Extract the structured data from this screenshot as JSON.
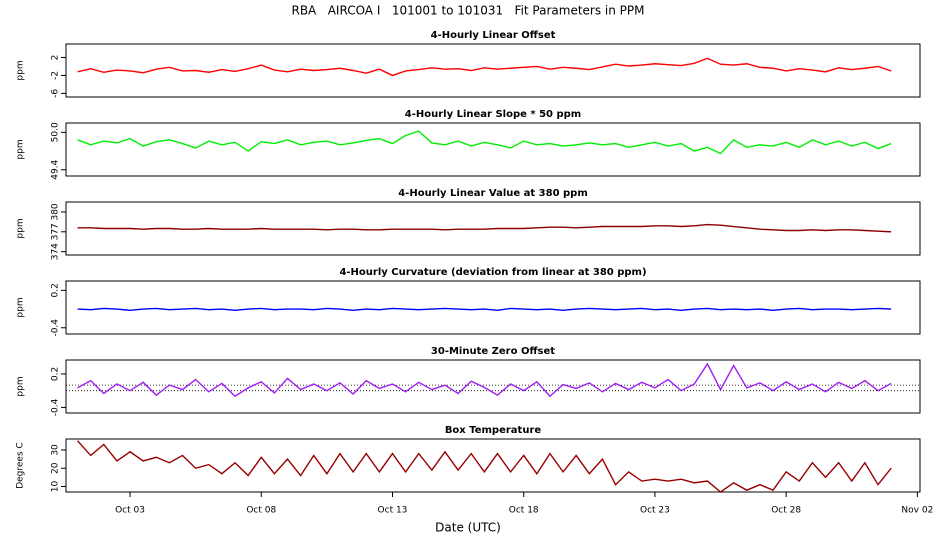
{
  "title": "RBA   AIRCOA I   101001 to 101031   Fit Parameters in PPM",
  "x_label": "Date (UTC)",
  "chart_data": [
    {
      "type": "line",
      "title": "4-Hourly Linear Offset",
      "y_label": "ppm",
      "color": "#ff0000",
      "xlim": [
        0.56,
        33.1
      ],
      "ylim": [
        -6.8,
        5
      ],
      "yticks": [
        -6,
        -2,
        2
      ],
      "x": [
        1,
        1.5,
        2,
        2.5,
        3,
        3.5,
        4,
        4.5,
        5,
        5.5,
        6,
        6.5,
        7,
        7.5,
        8,
        8.5,
        9,
        9.5,
        10,
        10.5,
        11,
        11.5,
        12,
        12.5,
        13,
        13.5,
        14,
        14.5,
        15,
        15.5,
        16,
        16.5,
        17,
        17.5,
        18,
        18.5,
        19,
        19.5,
        20,
        20.5,
        21,
        21.5,
        22,
        22.5,
        23,
        23.5,
        24,
        24.5,
        25,
        25.5,
        26,
        26.5,
        27,
        27.5,
        28,
        28.5,
        29,
        29.5,
        30,
        30.5,
        31,
        31.5,
        32
      ],
      "values": [
        -1.2,
        -0.5,
        -1.3,
        -0.8,
        -1.0,
        -1.4,
        -0.6,
        -0.2,
        -1.0,
        -0.9,
        -1.3,
        -0.7,
        -1.1,
        -0.5,
        0.3,
        -0.8,
        -1.2,
        -0.6,
        -0.9,
        -0.7,
        -0.4,
        -0.9,
        -1.5,
        -0.6,
        -2.0,
        -1.0,
        -0.7,
        -0.3,
        -0.6,
        -0.5,
        -0.9,
        -0.3,
        -0.6,
        -0.4,
        -0.2,
        0.0,
        -0.6,
        -0.2,
        -0.4,
        -0.7,
        -0.1,
        0.5,
        0.1,
        0.3,
        0.6,
        0.4,
        0.2,
        0.7,
        1.8,
        0.5,
        0.3,
        0.6,
        -0.2,
        -0.4,
        -1.0,
        -0.5,
        -0.8,
        -1.2,
        -0.3,
        -0.7,
        -0.4,
        0.0,
        -1.0
      ]
    },
    {
      "type": "line",
      "title": "4-Hourly Linear Slope * 50 ppm",
      "y_label": "ppm",
      "color": "#00ee00",
      "xlim": [
        0.56,
        33.1
      ],
      "ylim": [
        49.3,
        50.15
      ],
      "yticks": [
        49.4,
        {
          "value": 50.0,
          "label": "50.0"
        }
      ],
      "x": [
        1,
        1.5,
        2,
        2.5,
        3,
        3.5,
        4,
        4.5,
        5,
        5.5,
        6,
        6.5,
        7,
        7.5,
        8,
        8.5,
        9,
        9.5,
        10,
        10.5,
        11,
        11.5,
        12,
        12.5,
        13,
        13.5,
        14,
        14.5,
        15,
        15.5,
        16,
        16.5,
        17,
        17.5,
        18,
        18.5,
        19,
        19.5,
        20,
        20.5,
        21,
        21.5,
        22,
        22.5,
        23,
        23.5,
        24,
        24.5,
        25,
        25.5,
        26,
        26.5,
        27,
        27.5,
        28,
        28.5,
        29,
        29.5,
        30,
        30.5,
        31,
        31.5,
        32
      ],
      "values": [
        49.88,
        49.8,
        49.86,
        49.83,
        49.9,
        49.78,
        49.85,
        49.88,
        49.82,
        49.75,
        49.86,
        49.8,
        49.84,
        49.7,
        49.85,
        49.82,
        49.88,
        49.8,
        49.84,
        49.86,
        49.8,
        49.83,
        49.87,
        49.9,
        49.82,
        49.95,
        50.02,
        49.83,
        49.8,
        49.86,
        49.78,
        49.84,
        49.8,
        49.75,
        49.86,
        49.8,
        49.82,
        49.78,
        49.8,
        49.83,
        49.8,
        49.82,
        49.76,
        49.8,
        49.84,
        49.78,
        49.82,
        49.7,
        49.76,
        49.66,
        49.88,
        49.76,
        49.8,
        49.78,
        49.84,
        49.76,
        49.88,
        49.8,
        49.86,
        49.78,
        49.84,
        49.74,
        49.82
      ]
    },
    {
      "type": "line",
      "title": "4-Hourly Linear Value at 380 ppm",
      "y_label": "ppm",
      "color": "#8b0000",
      "xlim": [
        0.56,
        33.1
      ],
      "ylim": [
        373.5,
        381.5
      ],
      "yticks": [
        374,
        377,
        380
      ],
      "x": [
        1,
        1.5,
        2,
        2.5,
        3,
        3.5,
        4,
        4.5,
        5,
        5.5,
        6,
        6.5,
        7,
        7.5,
        8,
        8.5,
        9,
        9.5,
        10,
        10.5,
        11,
        11.5,
        12,
        12.5,
        13,
        13.5,
        14,
        14.5,
        15,
        15.5,
        16,
        16.5,
        17,
        17.5,
        18,
        18.5,
        19,
        19.5,
        20,
        20.5,
        21,
        21.5,
        22,
        22.5,
        23,
        23.5,
        24,
        24.5,
        25,
        25.5,
        26,
        26.5,
        27,
        27.5,
        28,
        28.5,
        29,
        29.5,
        30,
        30.5,
        31,
        31.5,
        32
      ],
      "values": [
        377.6,
        377.6,
        377.5,
        377.5,
        377.5,
        377.4,
        377.5,
        377.5,
        377.4,
        377.4,
        377.5,
        377.4,
        377.4,
        377.4,
        377.5,
        377.4,
        377.4,
        377.4,
        377.4,
        377.3,
        377.4,
        377.4,
        377.3,
        377.3,
        377.4,
        377.4,
        377.4,
        377.4,
        377.3,
        377.4,
        377.4,
        377.4,
        377.5,
        377.5,
        377.5,
        377.6,
        377.7,
        377.7,
        377.6,
        377.7,
        377.8,
        377.8,
        377.8,
        377.8,
        377.9,
        377.9,
        377.8,
        377.9,
        378.1,
        378.0,
        377.8,
        377.6,
        377.4,
        377.3,
        377.2,
        377.2,
        377.3,
        377.2,
        377.3,
        377.3,
        377.2,
        377.1,
        377.0
      ]
    },
    {
      "type": "line",
      "title": "4-Hourly Curvature (deviation from linear at 380 ppm)",
      "y_label": "ppm",
      "color": "#0000ff",
      "xlim": [
        0.56,
        33.1
      ],
      "ylim": [
        -0.5,
        0.35
      ],
      "yticks": [
        -0.4,
        0.2
      ],
      "x": [
        1,
        1.5,
        2,
        2.5,
        3,
        3.5,
        4,
        4.5,
        5,
        5.5,
        6,
        6.5,
        7,
        7.5,
        8,
        8.5,
        9,
        9.5,
        10,
        10.5,
        11,
        11.5,
        12,
        12.5,
        13,
        13.5,
        14,
        14.5,
        15,
        15.5,
        16,
        16.5,
        17,
        17.5,
        18,
        18.5,
        19,
        19.5,
        20,
        20.5,
        21,
        21.5,
        22,
        22.5,
        23,
        23.5,
        24,
        24.5,
        25,
        25.5,
        26,
        26.5,
        27,
        27.5,
        28,
        28.5,
        29,
        29.5,
        30,
        30.5,
        31,
        31.5,
        32
      ],
      "values": [
        -0.1,
        -0.11,
        -0.09,
        -0.1,
        -0.12,
        -0.1,
        -0.09,
        -0.11,
        -0.1,
        -0.09,
        -0.11,
        -0.1,
        -0.12,
        -0.1,
        -0.09,
        -0.11,
        -0.1,
        -0.1,
        -0.11,
        -0.09,
        -0.1,
        -0.12,
        -0.1,
        -0.11,
        -0.09,
        -0.1,
        -0.11,
        -0.1,
        -0.09,
        -0.1,
        -0.11,
        -0.1,
        -0.12,
        -0.09,
        -0.1,
        -0.11,
        -0.1,
        -0.12,
        -0.1,
        -0.09,
        -0.1,
        -0.11,
        -0.1,
        -0.09,
        -0.11,
        -0.1,
        -0.12,
        -0.1,
        -0.09,
        -0.11,
        -0.1,
        -0.11,
        -0.1,
        -0.12,
        -0.1,
        -0.09,
        -0.11,
        -0.1,
        -0.1,
        -0.11,
        -0.1,
        -0.09,
        -0.1
      ]
    },
    {
      "type": "line",
      "title": "30-Minute Zero Offset",
      "y_label": "ppm",
      "color": "#a020f0",
      "xlim": [
        0.56,
        33.1
      ],
      "ylim": [
        -0.5,
        0.45
      ],
      "yticks": [
        -0.4,
        0.2
      ],
      "reference_lines": [
        0,
        -0.1
      ],
      "x": [
        1,
        1.5,
        2,
        2.5,
        3,
        3.5,
        4,
        4.5,
        5,
        5.5,
        6,
        6.5,
        7,
        7.5,
        8,
        8.5,
        9,
        9.5,
        10,
        10.5,
        11,
        11.5,
        12,
        12.5,
        13,
        13.5,
        14,
        14.5,
        15,
        15.5,
        16,
        16.5,
        17,
        17.5,
        18,
        18.5,
        19,
        19.5,
        20,
        20.5,
        21,
        21.5,
        22,
        22.5,
        23,
        23.5,
        24,
        24.5,
        25,
        25.5,
        26,
        26.5,
        27,
        27.5,
        28,
        28.5,
        29,
        29.5,
        30,
        30.5,
        31,
        31.5,
        32
      ],
      "values": [
        -0.05,
        0.08,
        -0.15,
        0.02,
        -0.1,
        0.05,
        -0.18,
        0.0,
        -0.08,
        0.1,
        -0.12,
        0.03,
        -0.2,
        -0.05,
        0.06,
        -0.14,
        0.12,
        -0.08,
        0.02,
        -0.1,
        0.04,
        -0.16,
        0.08,
        -0.06,
        0.02,
        -0.12,
        0.05,
        -0.08,
        0.0,
        -0.15,
        0.07,
        -0.04,
        -0.18,
        0.02,
        -0.1,
        0.06,
        -0.2,
        0.01,
        -0.06,
        0.04,
        -0.12,
        0.03,
        -0.08,
        0.05,
        -0.05,
        0.1,
        -0.1,
        0.02,
        0.38,
        -0.08,
        0.35,
        -0.05,
        0.04,
        -0.1,
        0.06,
        -0.08,
        0.02,
        -0.12,
        0.05,
        -0.06,
        0.08,
        -0.1,
        0.03
      ]
    },
    {
      "type": "line",
      "title": "Box Temperature",
      "y_label": "Degrees C",
      "color": "#990000",
      "xlim": [
        0.56,
        33.1
      ],
      "ylim": [
        7,
        36
      ],
      "yticks": [
        10,
        20,
        30
      ],
      "xticks": [
        {
          "value": 3,
          "label": "Oct 03"
        },
        {
          "value": 8,
          "label": "Oct 08"
        },
        {
          "value": 13,
          "label": "Oct 13"
        },
        {
          "value": 18,
          "label": "Oct 18"
        },
        {
          "value": 23,
          "label": "Oct 23"
        },
        {
          "value": 28,
          "label": "Oct 28"
        },
        {
          "value": 33,
          "label": "Nov 02"
        }
      ],
      "x": [
        1,
        1.5,
        2,
        2.5,
        3,
        3.5,
        4,
        4.5,
        5,
        5.5,
        6,
        6.5,
        7,
        7.5,
        8,
        8.5,
        9,
        9.5,
        10,
        10.5,
        11,
        11.5,
        12,
        12.5,
        13,
        13.5,
        14,
        14.5,
        15,
        15.5,
        16,
        16.5,
        17,
        17.5,
        18,
        18.5,
        19,
        19.5,
        20,
        20.5,
        21,
        21.5,
        22,
        22.5,
        23,
        23.5,
        24,
        24.5,
        25,
        25.5,
        26,
        26.5,
        27,
        27.5,
        28,
        28.5,
        29,
        29.5,
        30,
        30.5,
        31,
        31.5,
        32
      ],
      "values": [
        35,
        27,
        33,
        24,
        29,
        24,
        26,
        23,
        27,
        20,
        22,
        17,
        23,
        16,
        26,
        17,
        25,
        16,
        27,
        17,
        28,
        18,
        28,
        18,
        28,
        18,
        28,
        19,
        29,
        19,
        28,
        18,
        28,
        18,
        27,
        17,
        28,
        18,
        27,
        17,
        25,
        11,
        18,
        13,
        14,
        13,
        14,
        12,
        13,
        7,
        12,
        8,
        11,
        8,
        18,
        13,
        23,
        15,
        23,
        13,
        23,
        11,
        20
      ]
    }
  ]
}
